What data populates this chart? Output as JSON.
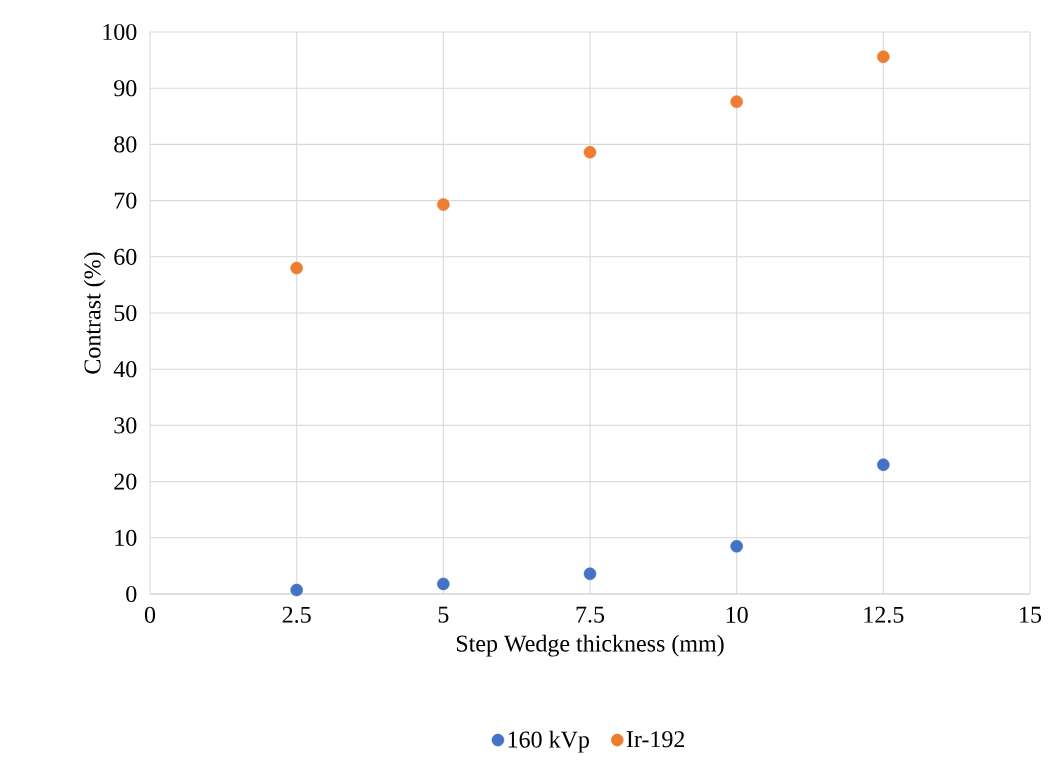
{
  "chart_data": {
    "type": "scatter",
    "xlabel": "Step Wedge thickness (mm)",
    "ylabel": "Contrast (%)",
    "x": [
      2.5,
      5,
      7.5,
      10,
      12.5
    ],
    "series": [
      {
        "name": "160 kVp",
        "color": "#4472c4",
        "values": [
          0.7,
          1.8,
          3.6,
          8.5,
          23
        ]
      },
      {
        "name": "Ir-192",
        "color": "#ed7d31",
        "values": [
          58,
          69.3,
          78.6,
          87.6,
          95.6
        ]
      }
    ],
    "xlim": [
      0,
      15
    ],
    "xticks": [
      0,
      2.5,
      5,
      7.5,
      10,
      12.5,
      15
    ],
    "ylim": [
      0,
      100
    ],
    "yticks": [
      0,
      10,
      20,
      30,
      40,
      50,
      60,
      70,
      80,
      90,
      100
    ],
    "grid": true,
    "legend": "bottom",
    "marker": "circle"
  }
}
